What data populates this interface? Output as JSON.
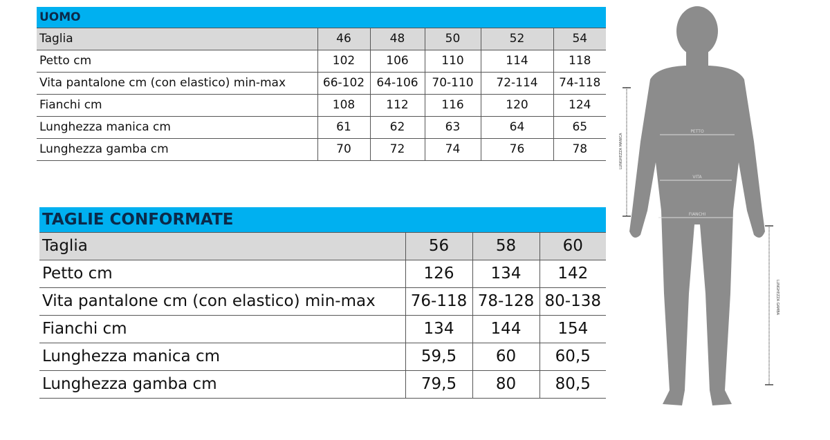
{
  "uomo": {
    "title": "UOMO",
    "rows": [
      {
        "label": "Taglia",
        "values": [
          "46",
          "48",
          "50",
          "52",
          "54"
        ]
      },
      {
        "label": "Petto cm",
        "values": [
          "102",
          "106",
          "110",
          "114",
          "118"
        ]
      },
      {
        "label": "Vita pantalone cm (con elastico) min-max",
        "values": [
          "66-102",
          "64-106",
          "70-110",
          "72-114",
          "74-118"
        ]
      },
      {
        "label": "Fianchi cm",
        "values": [
          "108",
          "112",
          "116",
          "120",
          "124"
        ]
      },
      {
        "label": "Lunghezza manica cm",
        "values": [
          "61",
          "62",
          "63",
          "64",
          "65"
        ]
      },
      {
        "label": "Lunghezza gamba cm",
        "values": [
          "70",
          "72",
          "74",
          "76",
          "78"
        ]
      }
    ]
  },
  "conformate": {
    "title": "TAGLIE CONFORMATE",
    "rows": [
      {
        "label": "Taglia",
        "values": [
          "56",
          "58",
          "60"
        ]
      },
      {
        "label": "Petto cm",
        "values": [
          "126",
          "134",
          "142"
        ]
      },
      {
        "label": "Vita pantalone cm (con elastico) min-max",
        "values": [
          "76-118",
          "78-128",
          "80-138"
        ]
      },
      {
        "label": "Fianchi cm",
        "values": [
          "134",
          "144",
          "154"
        ]
      },
      {
        "label": "Lunghezza manica cm",
        "values": [
          "59,5",
          "60",
          "60,5"
        ]
      },
      {
        "label": "Lunghezza gamba cm",
        "values": [
          "79,5",
          "80",
          "80,5"
        ]
      }
    ]
  },
  "figure": {
    "petto": "PETTO",
    "vita": "VITA",
    "fianchi": "FIANCHI",
    "manica": "LUNGHEZZA MANICA",
    "gamba": "LUNGHEZZA GAMBA"
  },
  "colors": {
    "header": "#00b0f0",
    "header_row": "#d9d9d9",
    "silhouette": "#8c8c8c"
  }
}
